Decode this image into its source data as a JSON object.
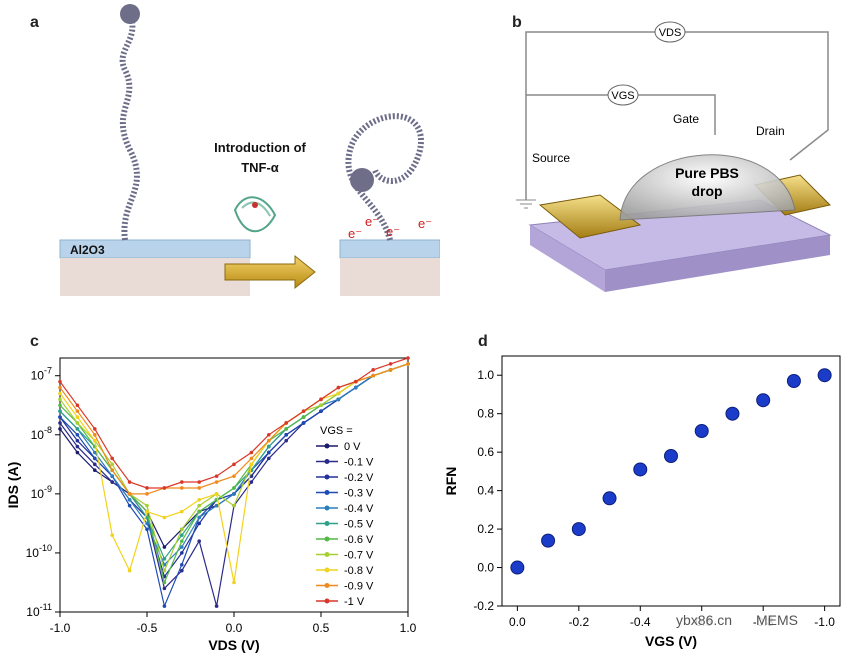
{
  "panels": {
    "a": {
      "label": "a",
      "substrate": "Al2O3",
      "arrow_text_line1": "Introduction of",
      "arrow_text_line2": "TNF-α",
      "electron": "e⁻"
    },
    "b": {
      "label": "b",
      "vds": "VDS",
      "vgs": "VGS",
      "source": "Source",
      "gate": "Gate",
      "drain": "Drain",
      "drop_line1": "Pure PBS",
      "drop_line2": "drop"
    },
    "c": {
      "label": "c"
    },
    "d": {
      "label": "d"
    }
  },
  "watermark": {
    "site": "ybx86.cn",
    "brand": "MEMS"
  },
  "chart_data": [
    {
      "id": "c",
      "type": "line",
      "xlabel": "VDS (V)",
      "ylabel": "IDS (A)",
      "xlim": [
        -1.0,
        1.0
      ],
      "ylim_log10": [
        -11,
        -6.7
      ],
      "yscale": "log",
      "x_ticks": [
        "-1.0",
        "-0.5",
        "0.0",
        "0.5",
        "1.0"
      ],
      "y_ticks": [
        "10-11",
        "10-10",
        "10-9",
        "10-8",
        "10-7"
      ],
      "legend_title": "VGS =",
      "legend_position": "right",
      "x": [
        -1.0,
        -0.9,
        -0.8,
        -0.7,
        -0.6,
        -0.5,
        -0.4,
        -0.3,
        -0.2,
        -0.1,
        0.0,
        0.1,
        0.2,
        0.3,
        0.4,
        0.5,
        0.6,
        0.7,
        0.8,
        0.9,
        1.0
      ],
      "series": [
        {
          "name": "0 V",
          "color": "#1a1a6e",
          "logI": [
            -7.9,
            -8.3,
            -8.6,
            -8.8,
            -9.0,
            -9.3,
            -9.9,
            -9.6,
            -9.3,
            -9.2,
            -9.0,
            -8.7,
            -8.3,
            -8.0,
            -7.8,
            -7.6,
            -7.4,
            -7.2,
            -7.0,
            -6.9,
            -6.8
          ]
        },
        {
          "name": "-0.1 V",
          "color": "#2b2b8a",
          "logI": [
            -7.8,
            -8.2,
            -8.5,
            -8.8,
            -9.0,
            -9.4,
            -10.6,
            -10.3,
            -9.8,
            -10.9,
            -9.2,
            -8.8,
            -8.4,
            -8.1,
            -7.8,
            -7.6,
            -7.4,
            -7.2,
            -7.0,
            -6.9,
            -6.8
          ]
        },
        {
          "name": "-0.2 V",
          "color": "#22319c",
          "logI": [
            -7.7,
            -8.1,
            -8.4,
            -8.7,
            -9.1,
            -9.4,
            -10.4,
            -10.0,
            -9.5,
            -9.1,
            -9.0,
            -8.7,
            -8.3,
            -8.0,
            -7.8,
            -7.6,
            -7.4,
            -7.2,
            -7.0,
            -6.9,
            -6.8
          ]
        },
        {
          "name": "-0.3 V",
          "color": "#1f4bb5",
          "logI": [
            -7.7,
            -8.0,
            -8.4,
            -8.7,
            -9.2,
            -9.6,
            -10.9,
            -10.2,
            -9.4,
            -9.1,
            -9.0,
            -8.6,
            -8.3,
            -8.0,
            -7.8,
            -7.6,
            -7.4,
            -7.2,
            -7.0,
            -6.9,
            -6.8
          ]
        },
        {
          "name": "-0.4 V",
          "color": "#2b7fbf",
          "logI": [
            -7.6,
            -7.9,
            -8.3,
            -8.7,
            -9.1,
            -9.5,
            -10.2,
            -9.9,
            -9.4,
            -9.2,
            -9.0,
            -8.6,
            -8.2,
            -7.9,
            -7.7,
            -7.5,
            -7.4,
            -7.2,
            -7.0,
            -6.9,
            -6.8
          ]
        },
        {
          "name": "-0.5 V",
          "color": "#2ea08a",
          "logI": [
            -7.6,
            -7.9,
            -8.2,
            -8.6,
            -9.0,
            -9.4,
            -10.1,
            -9.7,
            -9.3,
            -9.1,
            -8.9,
            -8.6,
            -8.2,
            -7.9,
            -7.7,
            -7.5,
            -7.3,
            -7.1,
            -7.0,
            -6.9,
            -6.8
          ]
        },
        {
          "name": "-0.6 V",
          "color": "#54b947",
          "logI": [
            -7.5,
            -7.8,
            -8.2,
            -8.6,
            -9.0,
            -9.3,
            -10.5,
            -9.8,
            -9.3,
            -9.1,
            -8.9,
            -8.5,
            -8.1,
            -7.9,
            -7.7,
            -7.5,
            -7.3,
            -7.1,
            -7.0,
            -6.9,
            -6.8
          ]
        },
        {
          "name": "-0.7 V",
          "color": "#a8cf30",
          "logI": [
            -7.4,
            -7.8,
            -8.1,
            -8.5,
            -9.0,
            -9.2,
            -10.3,
            -9.6,
            -9.2,
            -9.0,
            -9.2,
            -8.5,
            -8.1,
            -7.8,
            -7.6,
            -7.5,
            -7.3,
            -7.1,
            -7.0,
            -6.9,
            -6.8
          ]
        },
        {
          "name": "-0.8 V",
          "color": "#f2d21c",
          "logI": [
            -7.3,
            -7.7,
            -8.1,
            -9.7,
            -10.3,
            -9.3,
            -9.4,
            -9.3,
            -9.1,
            -9.0,
            -10.5,
            -8.5,
            -8.1,
            -7.8,
            -7.6,
            -7.4,
            -7.3,
            -7.1,
            -7.0,
            -6.9,
            -6.8
          ]
        },
        {
          "name": "-0.9 V",
          "color": "#f08a1e",
          "logI": [
            -7.2,
            -7.6,
            -8.0,
            -8.6,
            -9.0,
            -9.0,
            -8.9,
            -8.9,
            -8.9,
            -8.8,
            -8.7,
            -8.4,
            -8.1,
            -7.8,
            -7.6,
            -7.4,
            -7.2,
            -7.1,
            -7.0,
            -6.9,
            -6.8
          ]
        },
        {
          "name": "-1 V",
          "color": "#d9372a",
          "logI": [
            -7.1,
            -7.5,
            -7.9,
            -8.4,
            -8.8,
            -8.9,
            -8.9,
            -8.8,
            -8.8,
            -8.7,
            -8.5,
            -8.3,
            -8.0,
            -7.8,
            -7.6,
            -7.4,
            -7.2,
            -7.1,
            -6.9,
            -6.8,
            -6.7
          ]
        }
      ]
    },
    {
      "id": "d",
      "type": "scatter",
      "xlabel": "VGS (V)",
      "ylabel": "RFN",
      "xlim": [
        0.05,
        -1.05
      ],
      "ylim": [
        -0.2,
        1.1
      ],
      "x_ticks": [
        "0.0",
        "-0.2",
        "-0.4",
        "-0.6",
        "-0.8",
        "-1.0"
      ],
      "y_ticks": [
        "-0.2",
        "0.0",
        "0.2",
        "0.4",
        "0.6",
        "0.8",
        "1.0"
      ],
      "marker_color": "#1a3cc9",
      "points": [
        {
          "x": 0.0,
          "y": 0.0
        },
        {
          "x": -0.1,
          "y": 0.14
        },
        {
          "x": -0.2,
          "y": 0.2
        },
        {
          "x": -0.3,
          "y": 0.36
        },
        {
          "x": -0.4,
          "y": 0.51
        },
        {
          "x": -0.5,
          "y": 0.58
        },
        {
          "x": -0.6,
          "y": 0.71
        },
        {
          "x": -0.7,
          "y": 0.8
        },
        {
          "x": -0.8,
          "y": 0.87
        },
        {
          "x": -0.9,
          "y": 0.97
        },
        {
          "x": -1.0,
          "y": 1.0
        }
      ]
    }
  ]
}
